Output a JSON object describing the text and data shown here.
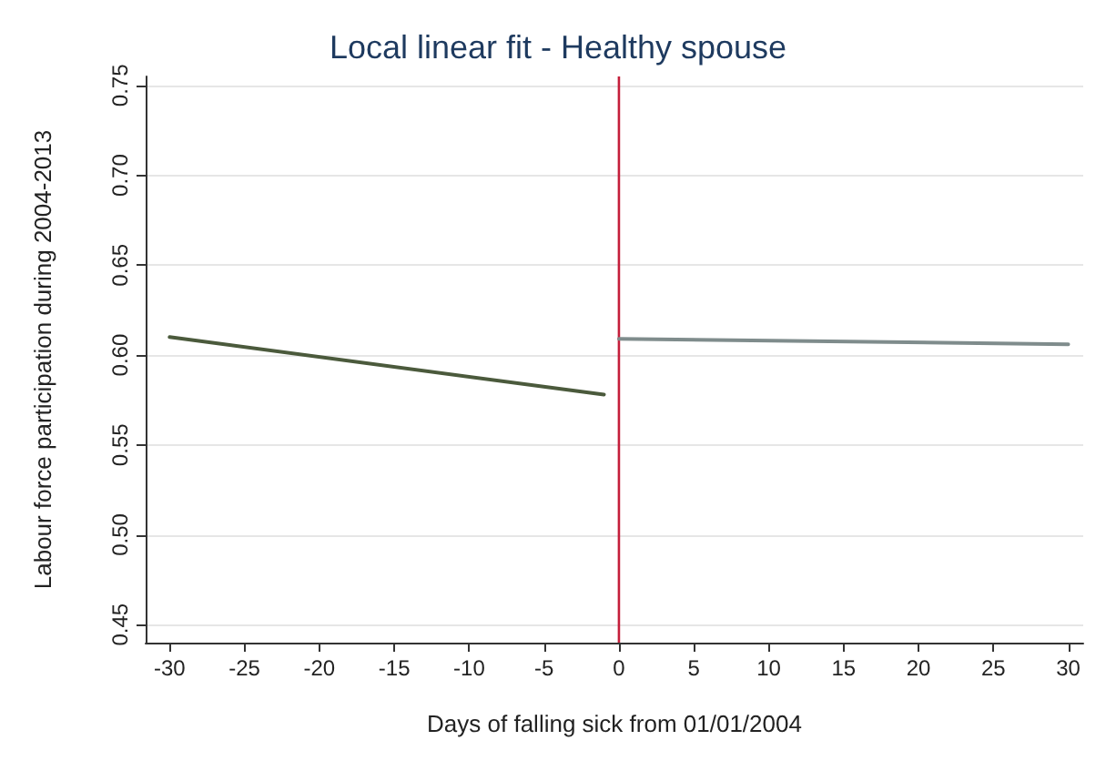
{
  "chart_data": {
    "type": "line",
    "title": "Local linear fit - Healthy spouse",
    "xlabel": "Days of falling sick from 01/01/2004",
    "ylabel": "Labour force participation during 2004-2013",
    "series": [
      {
        "color": "#4b5a3c",
        "x": [
          -30,
          -1
        ],
        "values": [
          0.61,
          0.578
        ]
      },
      {
        "color": "#7f8c8c",
        "x": [
          0,
          30
        ],
        "values": [
          0.609,
          0.606
        ]
      }
    ],
    "xlim": [
      -31.6,
      31
    ],
    "xticks": [
      -30,
      -25,
      -20,
      -15,
      -10,
      -5,
      0,
      5,
      10,
      15,
      20,
      25,
      30
    ],
    "ylim": [
      0.44,
      0.755
    ],
    "yticks": [
      {
        "value": 0.45,
        "label": "0.45"
      },
      {
        "value": 0.5,
        "label": "0.50"
      },
      {
        "value": 0.55,
        "label": "0.55"
      },
      {
        "value": 0.6,
        "label": "0.60"
      },
      {
        "value": 0.65,
        "label": "0.65"
      },
      {
        "value": 0.7,
        "label": "0.70"
      },
      {
        "value": 0.75,
        "label": "0.75"
      }
    ],
    "ref_lines": [
      {
        "axis": "x",
        "value": 0,
        "color": "#c41e3a"
      }
    ],
    "grid": "y",
    "marker": "none",
    "line_style": "solid"
  }
}
